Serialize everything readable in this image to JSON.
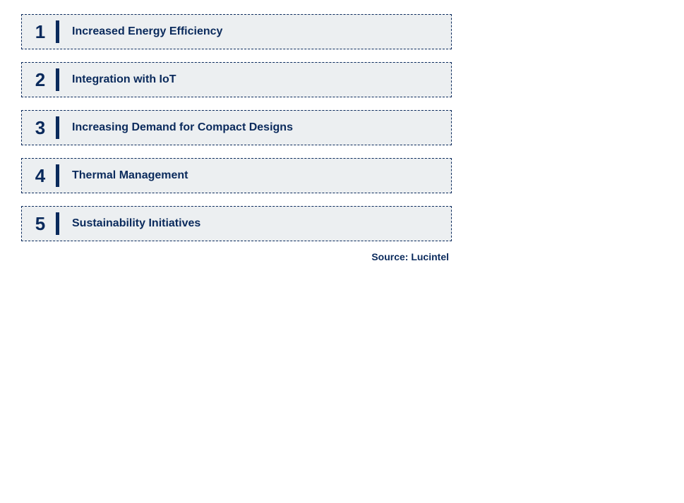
{
  "list": {
    "items": [
      {
        "number": "1",
        "label": "Increased Energy Efficiency"
      },
      {
        "number": "2",
        "label": "Integration with IoT"
      },
      {
        "number": "3",
        "label": "Increasing Demand for Compact Designs"
      },
      {
        "number": "4",
        "label": "Thermal Management"
      },
      {
        "number": "5",
        "label": "Sustainability Initiatives"
      }
    ]
  },
  "source": "Source: Lucintel",
  "styling": {
    "item_background": "#eceff1",
    "border_color": "#0a2a5c",
    "text_color": "#0a2a5c",
    "number_fontsize": 26,
    "label_fontsize": 16,
    "source_fontsize": 14,
    "item_height": 50,
    "item_gap": 18,
    "container_width": 610,
    "divider_width": 5,
    "divider_height": 32
  }
}
